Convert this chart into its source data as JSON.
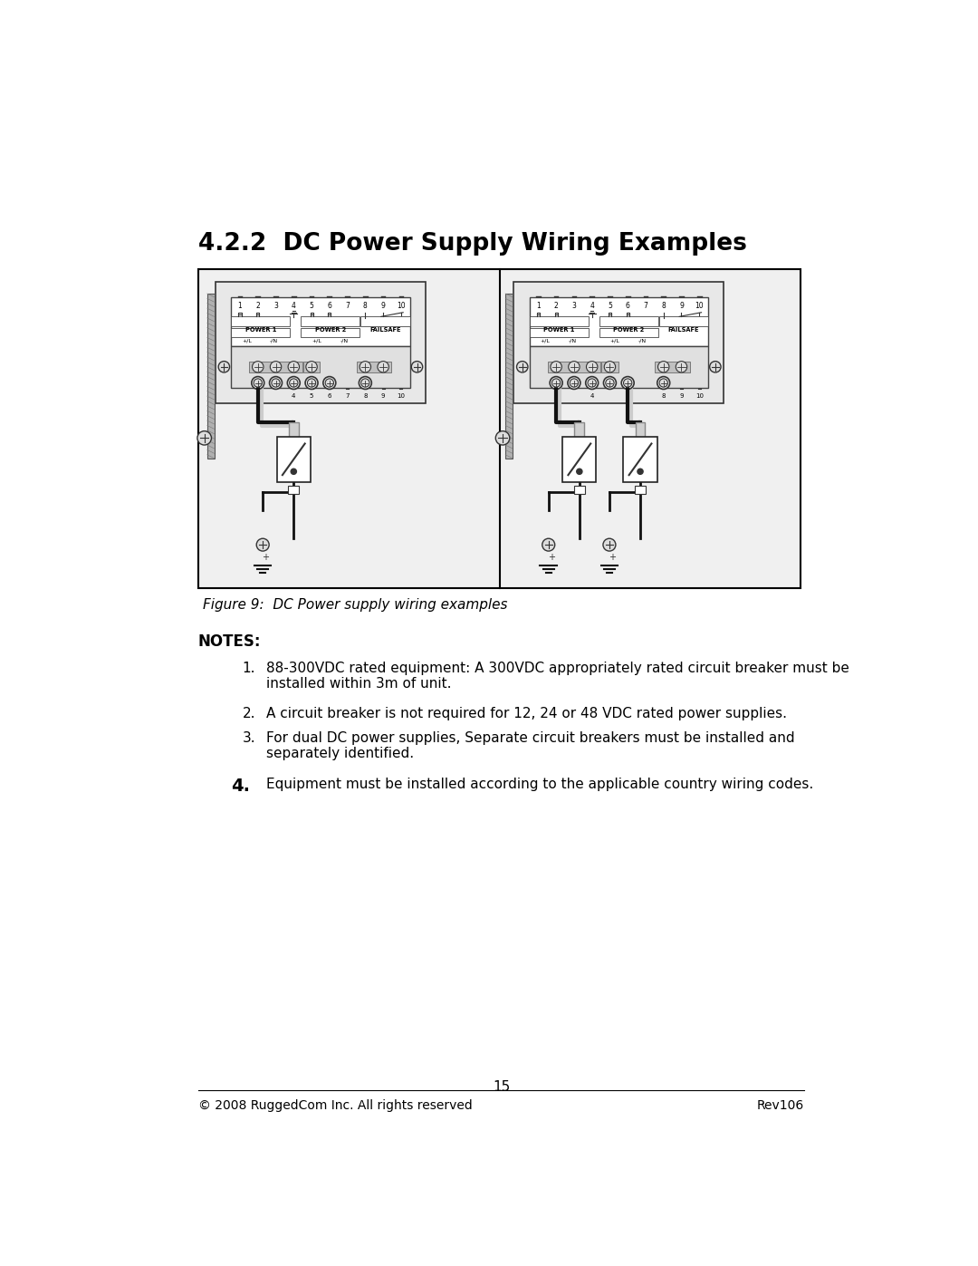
{
  "title": "4.2.2  DC Power Supply Wiring Examples",
  "figure_caption": "Figure 9:  DC Power supply wiring examples",
  "notes_header": "NOTES:",
  "note1": "88-300VDC rated equipment: A 300VDC appropriately rated circuit breaker must be\ninstalled within 3m of unit.",
  "note2": "A circuit breaker is not required for 12, 24 or 48 VDC rated power supplies.",
  "note3": "For dual DC power supplies, Separate circuit breakers must be installed and\nseparately identified.",
  "note4": "Equipment must be installed according to the applicable country wiring codes.",
  "footer_left": "© 2008 RuggedCom Inc. All rights reserved",
  "footer_right": "Rev106",
  "page_number": "15",
  "bg_color": "#ffffff",
  "text_color": "#000000",
  "outer_box_color": "#000000",
  "panel_bg": "#ffffff",
  "terminal_bg": "#d8d8d8",
  "wire_black": "#111111",
  "wire_white": "#cccccc",
  "rail_color": "#aaaaaa"
}
